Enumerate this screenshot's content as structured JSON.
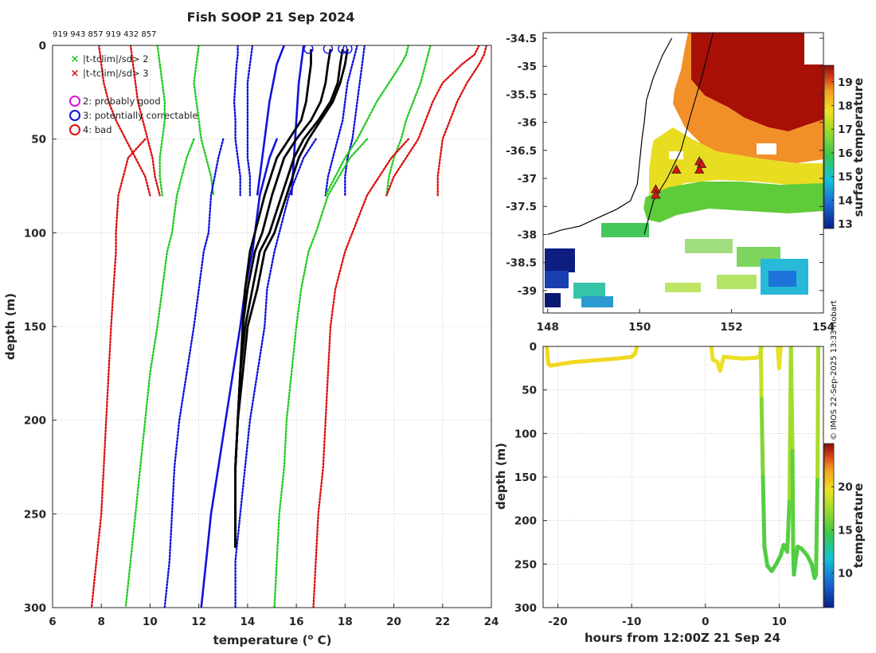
{
  "figure": {
    "title": "Fish SOOP 21 Sep 2024",
    "platform_ids": "919 943 857 919 432 857",
    "credit": "© IMOS 22-Sep-2025 13:33 Hobart"
  },
  "chart_data": [
    {
      "type": "line",
      "id": "profile",
      "xlabel": "temperature (",
      "xlabel_sup": "o",
      "xlabel_tail": " C)",
      "ylabel": "depth (m)",
      "xlim": [
        6,
        24
      ],
      "ylim": [
        0,
        300
      ],
      "xticks": [
        6,
        8,
        10,
        12,
        14,
        16,
        18,
        20,
        22,
        24
      ],
      "yticks": [
        0,
        50,
        100,
        150,
        200,
        250,
        300
      ],
      "legend": {
        "placement": "top-left",
        "flag_markers": [
          {
            "label": "|t-tclim|/sd> 2",
            "color": "#22cc22"
          },
          {
            "label": "|t-tclim|/sd> 3",
            "color": "#dd1111"
          }
        ],
        "qc_flags": [
          {
            "label": "2: probably good",
            "color": "#dd11dd"
          },
          {
            "label": "3: potentially correctable",
            "color": "#1111dd"
          },
          {
            "label": "4: bad",
            "color": "#dd1111"
          }
        ]
      },
      "climatology": {
        "short_depth": [
          0,
          5,
          10,
          20,
          30,
          40,
          50,
          60,
          70,
          80
        ],
        "short_lines": [
          {
            "band": "sd3",
            "color": "#dd1111",
            "temps": [
              7.9,
              7.95,
              8.0,
              8.1,
              8.3,
              8.6,
              9.0,
              9.4,
              9.8,
              10.0
            ]
          },
          {
            "band": "sd3",
            "color": "#dd1111",
            "temps": [
              9.2,
              9.25,
              9.3,
              9.4,
              9.5,
              9.7,
              9.9,
              10.1,
              10.2,
              10.4
            ]
          },
          {
            "band": "sd2",
            "color": "#22cc22",
            "temps": [
              10.3,
              10.35,
              10.4,
              10.5,
              10.6,
              10.6,
              10.5,
              10.4,
              10.4,
              10.5
            ]
          },
          {
            "band": "sd2",
            "color": "#22cc22",
            "temps": [
              12.0,
              11.95,
              11.9,
              11.8,
              11.9,
              12.0,
              12.1,
              12.3,
              12.5,
              12.6
            ]
          },
          {
            "band": "sd1",
            "color": "#1111dd",
            "temps": [
              13.6,
              13.6,
              13.55,
              13.5,
              13.45,
              13.5,
              13.5,
              13.6,
              13.7,
              13.7
            ]
          },
          {
            "band": "sd1",
            "color": "#1111dd",
            "temps": [
              14.2,
              14.15,
              14.1,
              14.0,
              14.0,
              14.0,
              14.0,
              14.0,
              14.1,
              14.1
            ]
          },
          {
            "band": "sd1",
            "color": "#1111dd",
            "temps": [
              18.8,
              18.75,
              18.7,
              18.6,
              18.5,
              18.4,
              18.3,
              18.1,
              18.0,
              18.0
            ]
          },
          {
            "band": "sd1",
            "color": "#1111dd",
            "temps": [
              18.5,
              18.4,
              18.3,
              18.1,
              18.0,
              17.9,
              17.7,
              17.5,
              17.3,
              17.2
            ]
          },
          {
            "band": "sd2",
            "color": "#22cc22",
            "temps": [
              21.5,
              21.4,
              21.3,
              21.1,
              20.8,
              20.5,
              20.3,
              20.0,
              19.8,
              19.7
            ]
          },
          {
            "band": "sd2",
            "color": "#22cc22",
            "temps": [
              20.6,
              20.5,
              20.3,
              19.8,
              19.3,
              18.9,
              18.5,
              18.0,
              17.6,
              17.2
            ]
          },
          {
            "band": "sd3",
            "color": "#dd1111",
            "temps": [
              23.8,
              23.7,
              23.5,
              23.0,
              22.6,
              22.3,
              22.0,
              21.9,
              21.8,
              21.8
            ]
          },
          {
            "band": "sd3",
            "color": "#dd1111",
            "temps": [
              23.5,
              23.3,
              22.8,
              22.0,
              21.6,
              21.3,
              21.0,
              20.5,
              20.0,
              19.7
            ]
          }
        ],
        "long_depth": [
          50,
          60,
          80,
          100,
          110,
          130,
          150,
          175,
          200,
          225,
          250,
          275,
          300
        ],
        "long_lines": [
          {
            "band": "sd3",
            "color": "#dd1111",
            "temps": [
              9.8,
              9.1,
              8.7,
              8.6,
              8.6,
              8.5,
              8.4,
              8.3,
              8.2,
              8.1,
              8.0,
              7.8,
              7.6
            ]
          },
          {
            "band": "sd2",
            "color": "#22cc22",
            "temps": [
              11.8,
              11.5,
              11.1,
              10.9,
              10.7,
              10.5,
              10.3,
              10.0,
              9.8,
              9.6,
              9.4,
              9.2,
              9.0
            ]
          },
          {
            "band": "sd1",
            "color": "#1111dd",
            "temps": [
              13.0,
              12.8,
              12.5,
              12.4,
              12.2,
              12.0,
              11.8,
              11.5,
              11.2,
              11.0,
              10.9,
              10.8,
              10.6
            ]
          },
          {
            "band": "mean",
            "color": "#1111dd",
            "solid": true,
            "temps": [
              15.2,
              14.9,
              14.5,
              14.3,
              14.2,
              13.9,
              13.7,
              13.4,
              13.1,
              12.8,
              12.5,
              12.3,
              12.1
            ]
          },
          {
            "band": "sd1",
            "color": "#1111dd",
            "temps": [
              16.8,
              16.3,
              15.7,
              15.3,
              15.1,
              14.8,
              14.7,
              14.4,
              14.1,
              13.9,
              13.7,
              13.5,
              13.5
            ]
          },
          {
            "band": "sd2",
            "color": "#22cc22",
            "temps": [
              18.9,
              18.2,
              17.3,
              16.8,
              16.5,
              16.2,
              16.0,
              15.8,
              15.6,
              15.5,
              15.3,
              15.2,
              15.1
            ]
          },
          {
            "band": "sd3",
            "color": "#dd1111",
            "temps": [
              20.6,
              19.9,
              18.9,
              18.3,
              18.0,
              17.6,
              17.4,
              17.3,
              17.2,
              17.1,
              16.9,
              16.8,
              16.7
            ]
          }
        ]
      },
      "observed_blue": [
        {
          "depth": [
            0,
            20,
            40,
            60,
            80
          ],
          "temps": [
            16.3,
            16.1,
            16.0,
            15.9,
            15.8
          ]
        },
        {
          "depth": [
            0,
            10,
            30,
            60,
            80
          ],
          "temps": [
            15.5,
            15.2,
            14.9,
            14.6,
            14.4
          ]
        }
      ],
      "observed_black": {
        "depth": [
          2,
          10,
          20,
          30,
          40,
          50,
          60,
          80,
          100,
          110,
          130,
          150,
          175,
          200,
          225,
          250,
          268
        ],
        "profiles": [
          [
            16.6,
            16.6,
            16.5,
            16.4,
            16.2,
            15.7,
            15.2,
            14.7,
            14.3,
            14.1,
            13.9,
            13.8,
            13.7,
            13.6,
            13.5,
            13.5,
            13.5
          ],
          [
            17.4,
            17.3,
            17.2,
            17.0,
            16.6,
            16.0,
            15.5,
            15.0,
            14.6,
            14.3,
            14.0,
            13.8,
            13.7,
            13.6,
            13.5,
            13.5,
            13.5
          ],
          [
            17.9,
            17.8,
            17.7,
            17.4,
            16.9,
            16.3,
            15.9,
            15.4,
            14.9,
            14.5,
            14.2,
            13.9,
            13.7,
            13.6,
            13.5,
            13.5,
            13.5
          ],
          [
            18.1,
            18.0,
            17.8,
            17.5,
            17.0,
            16.5,
            16.1,
            15.6,
            15.1,
            14.7,
            14.4,
            14.0,
            13.8,
            13.6,
            13.5,
            13.5,
            13.5
          ]
        ]
      },
      "qc_markers": [
        {
          "temp": 16.5,
          "depth": 1
        },
        {
          "temp": 17.3,
          "depth": 1
        },
        {
          "temp": 17.9,
          "depth": 1
        },
        {
          "temp": 18.1,
          "depth": 1
        }
      ]
    },
    {
      "type": "heatmap",
      "id": "map",
      "colorbar_label": "surface temperature",
      "xlim": [
        147.9,
        154
      ],
      "ylim": [
        -39.4,
        -34.4
      ],
      "xticks": [
        148,
        150,
        152,
        154
      ],
      "yticks": [
        -34.5,
        -35,
        -35.5,
        -36,
        -36.5,
        -37,
        -37.5,
        -38,
        -38.5,
        -39
      ],
      "cbar_range": [
        12.8,
        19.7
      ],
      "cbar_ticks": [
        13,
        14,
        15,
        16,
        17,
        18,
        19
      ],
      "coast": [
        [
          148.0,
          -38.0
        ],
        [
          148.3,
          -37.92
        ],
        [
          148.7,
          -37.85
        ],
        [
          149.1,
          -37.7
        ],
        [
          149.5,
          -37.55
        ],
        [
          149.8,
          -37.4
        ],
        [
          149.95,
          -37.1
        ],
        [
          150.0,
          -36.7
        ],
        [
          150.05,
          -36.3
        ],
        [
          150.1,
          -36.0
        ],
        [
          150.15,
          -35.6
        ],
        [
          150.3,
          -35.2
        ],
        [
          150.5,
          -34.8
        ],
        [
          150.7,
          -34.5
        ]
      ],
      "track": [
        [
          150.1,
          -38.0
        ],
        [
          150.3,
          -37.4
        ],
        [
          150.6,
          -37.0
        ],
        [
          150.9,
          -36.5
        ],
        [
          151.1,
          -35.9
        ],
        [
          151.35,
          -35.2
        ],
        [
          151.6,
          -34.4
        ]
      ],
      "stations": [
        [
          150.35,
          -37.2
        ],
        [
          150.35,
          -37.3
        ],
        [
          150.8,
          -36.85
        ],
        [
          151.3,
          -36.7
        ],
        [
          151.35,
          -36.75
        ],
        [
          151.3,
          -36.85
        ]
      ]
    },
    {
      "type": "scatter",
      "id": "timeseries",
      "xlabel": "hours from 12:00Z 21 Sep 24",
      "ylabel": "depth (m)",
      "colorbar_label": "temperature",
      "xlim": [
        -22,
        16
      ],
      "ylim": [
        0,
        300
      ],
      "xticks": [
        -20,
        -10,
        0,
        10
      ],
      "yticks": [
        0,
        50,
        100,
        150,
        200,
        250,
        300
      ],
      "cbar_range": [
        6,
        25
      ],
      "cbar_ticks": [
        10,
        15,
        20
      ],
      "segments": [
        {
          "x": [
            -21.5,
            -21.3,
            -21.0,
            -18,
            -15,
            -12,
            -10,
            -9.5,
            -9.3
          ],
          "y": [
            0,
            20,
            22,
            18,
            16,
            14,
            12,
            8,
            0
          ],
          "temp": [
            20,
            20,
            20,
            20,
            20,
            20,
            20,
            20,
            20
          ]
        },
        {
          "x": [
            0.8,
            1.0,
            1.6,
            2.0,
            2.5,
            5,
            7,
            7.4,
            7.6
          ],
          "y": [
            0,
            15,
            18,
            28,
            12,
            14,
            13,
            10,
            0
          ],
          "temp": [
            19.6,
            19.6,
            19.6,
            19.6,
            19.6,
            19.6,
            19.6,
            19.6,
            19.6
          ]
        },
        {
          "x": [
            7.5,
            7.6,
            7.8,
            8.0,
            8.4,
            9.0,
            9.6,
            10.2,
            10.6,
            11.1,
            11.4,
            11.6,
            11.8,
            11.9,
            12.0,
            12.2,
            12.5,
            13.0,
            13.8,
            14.4,
            14.8,
            15.0,
            15.2,
            15.3
          ],
          "y": [
            0,
            60,
            150,
            230,
            252,
            258,
            250,
            240,
            228,
            236,
            175,
            0,
            120,
            235,
            262,
            248,
            230,
            232,
            240,
            250,
            266,
            262,
            150,
            0
          ],
          "temp": [
            19.5,
            17.5,
            15.5,
            15.2,
            15.2,
            15.1,
            15.2,
            15.2,
            15.3,
            15.2,
            15.8,
            19,
            16,
            15.2,
            15.1,
            15.2,
            15.3,
            15.3,
            15.2,
            15.2,
            15.1,
            15.1,
            15.8,
            19.5
          ]
        },
        {
          "x": [
            9.8,
            10.0,
            10.2
          ],
          "y": [
            0,
            25,
            0
          ],
          "temp": [
            19.5,
            19.4,
            19.5
          ]
        }
      ]
    }
  ]
}
